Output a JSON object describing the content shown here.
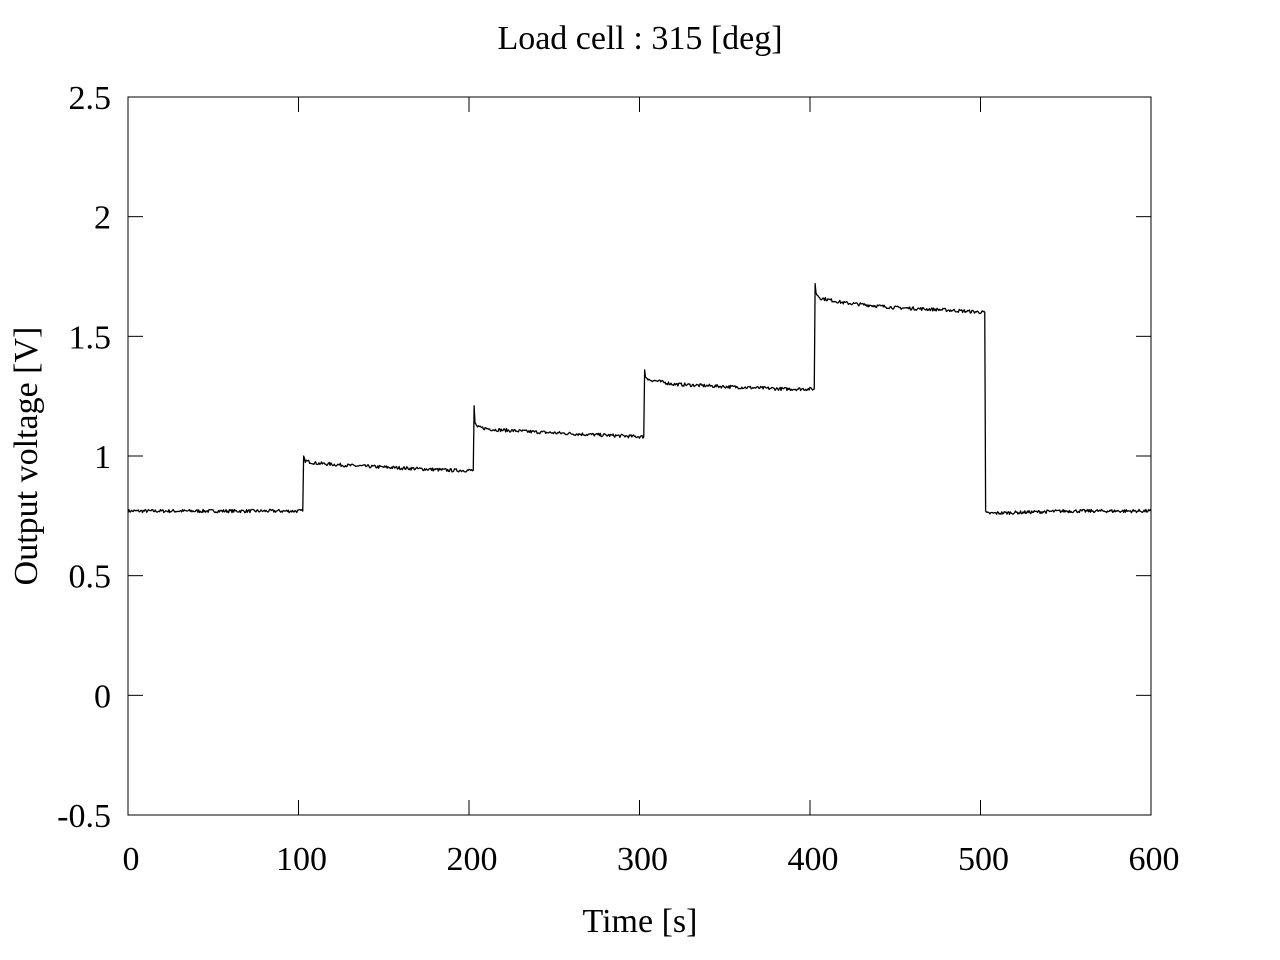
{
  "chart_data": {
    "type": "line",
    "title": "Load cell : 315 [deg]",
    "xlabel": "Time [s]",
    "ylabel": "Output voltage [V]",
    "xlim": [
      0,
      600
    ],
    "ylim": [
      -0.5,
      2.5
    ],
    "xticks": [
      0,
      100,
      200,
      300,
      400,
      500,
      600
    ],
    "yticks": [
      -0.5,
      0,
      0.5,
      1,
      1.5,
      2,
      2.5
    ],
    "xtick_labels": [
      "0",
      "100",
      "200",
      "300",
      "400",
      "500",
      "600"
    ],
    "ytick_labels": [
      "-0.5",
      "0",
      "0.5",
      "1",
      "1.5",
      "2",
      "2.5"
    ],
    "grid": false,
    "line_color": "#000000",
    "series": [
      {
        "x": [
          0,
          50,
          102.5,
          103,
          104,
          110,
          130,
          160,
          190,
          202.5,
          203,
          203.5,
          205,
          215,
          240,
          270,
          302.5,
          303,
          303.5,
          305,
          320,
          350,
          385,
          402.5,
          403,
          403.5,
          406,
          420,
          450,
          480,
          502.5,
          503,
          504,
          550,
          600
        ],
        "y": [
          0.77,
          0.77,
          0.77,
          1.0,
          0.98,
          0.97,
          0.96,
          0.95,
          0.94,
          0.94,
          1.21,
          1.14,
          1.12,
          1.11,
          1.1,
          1.09,
          1.08,
          1.36,
          1.33,
          1.32,
          1.3,
          1.29,
          1.28,
          1.28,
          1.72,
          1.68,
          1.66,
          1.64,
          1.62,
          1.61,
          1.6,
          0.77,
          0.76,
          0.77,
          0.77
        ]
      }
    ]
  }
}
